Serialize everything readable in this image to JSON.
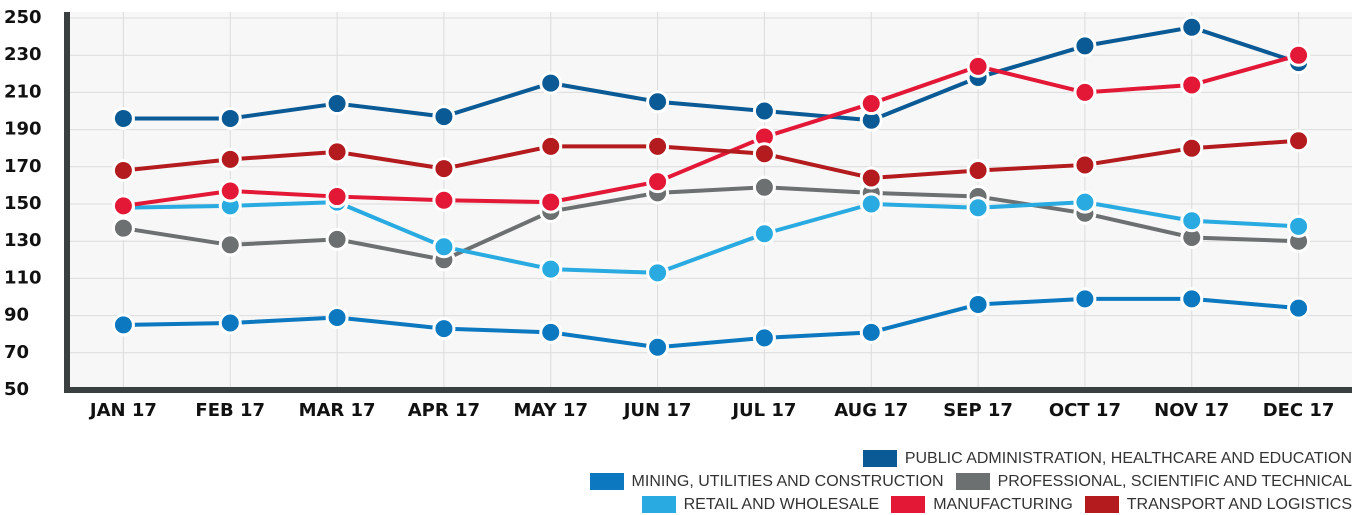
{
  "chart_data": {
    "type": "line",
    "categories": [
      "JAN 17",
      "FEB 17",
      "MAR 17",
      "APR 17",
      "MAY 17",
      "JUN 17",
      "JUL 17",
      "AUG 17",
      "SEP 17",
      "OCT 17",
      "NOV 17",
      "DEC 17"
    ],
    "series": [
      {
        "name": "PUBLIC ADMINISTRATION, HEALTHCARE AND EDUCATION",
        "color": "#0a5a96",
        "values": [
          196,
          196,
          204,
          197,
          215,
          205,
          200,
          195,
          218,
          235,
          245,
          226
        ]
      },
      {
        "name": "MINING, UTILITIES AND CONSTRUCTION",
        "color": "#0b78c0",
        "values": [
          85,
          86,
          89,
          83,
          81,
          73,
          78,
          81,
          96,
          99,
          99,
          94
        ]
      },
      {
        "name": "PROFESSIONAL, SCIENTIFIC AND TECHNICAL",
        "color": "#6d7070",
        "values": [
          137,
          128,
          131,
          120,
          146,
          156,
          159,
          156,
          154,
          145,
          132,
          130
        ]
      },
      {
        "name": "RETAIL AND WHOLESALE",
        "color": "#29aae1",
        "values": [
          148,
          149,
          151,
          127,
          115,
          113,
          134,
          150,
          148,
          151,
          141,
          138
        ]
      },
      {
        "name": "MANUFACTURING",
        "color": "#e31837",
        "values": [
          149,
          157,
          154,
          152,
          151,
          162,
          186,
          204,
          224,
          210,
          214,
          230
        ]
      },
      {
        "name": "TRANSPORT AND LOGISTICS",
        "color": "#b31b1e",
        "values": [
          168,
          174,
          178,
          169,
          181,
          181,
          177,
          164,
          168,
          171,
          180,
          184
        ]
      }
    ],
    "ylim": [
      50,
      250
    ],
    "yticks": [
      50,
      70,
      90,
      110,
      130,
      150,
      170,
      190,
      210,
      230,
      250
    ],
    "grid": true
  }
}
